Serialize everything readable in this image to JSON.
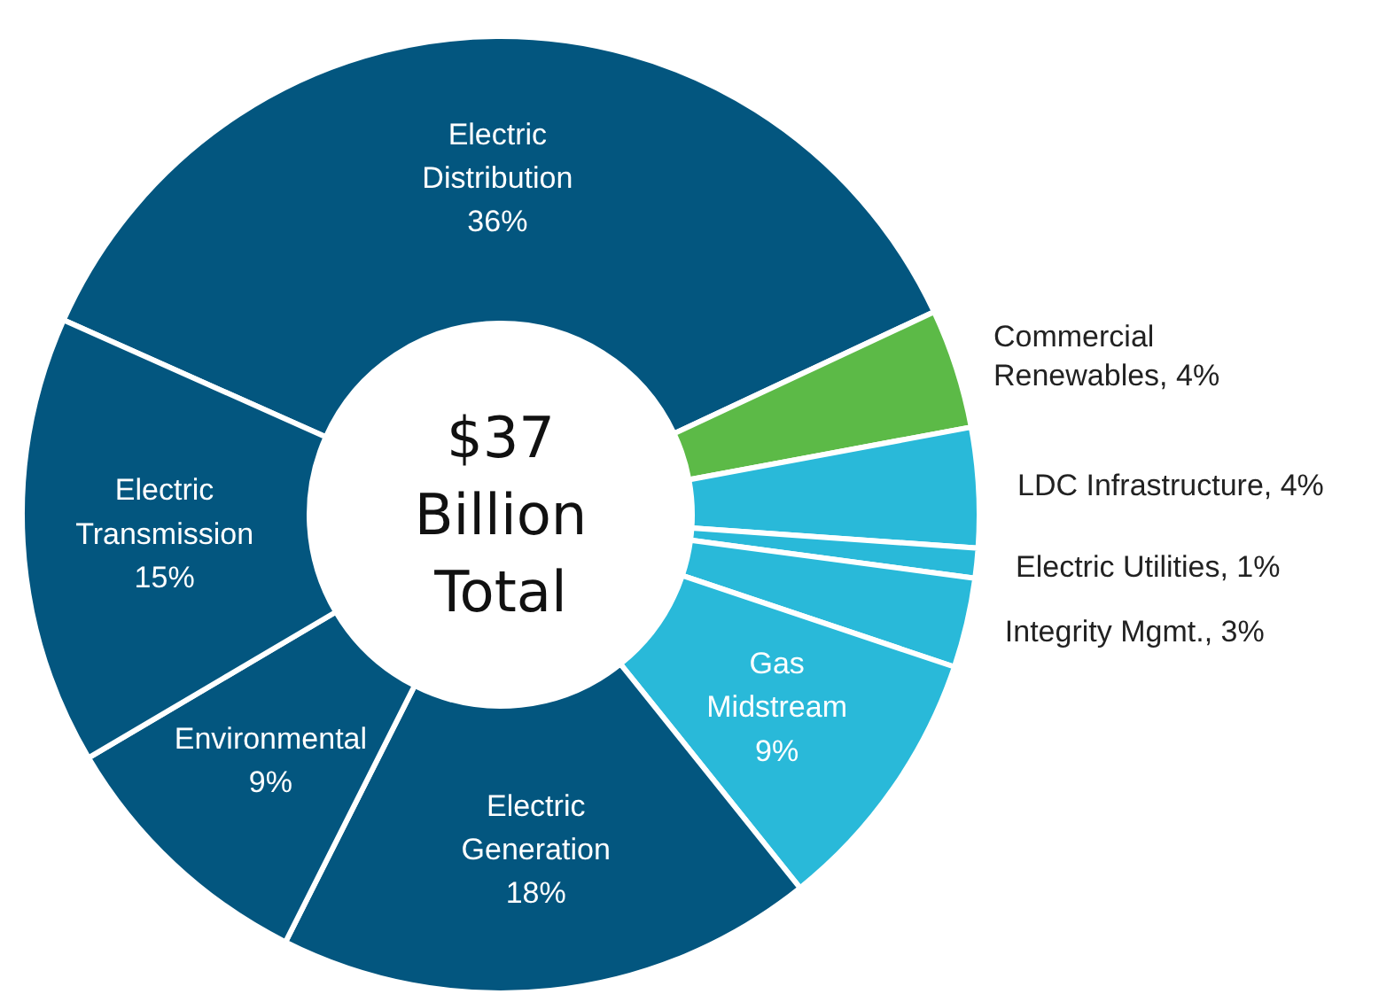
{
  "chart_data": {
    "type": "donut",
    "categories": [
      "Electric Distribution",
      "Commercial Renewables, 4%",
      "LDC Infrastructure, 4%",
      "Electric Utilities, 1%",
      "Integrity Mgmt., 3%",
      "Gas Midstream",
      "Electric Generation",
      "Environmental",
      "Electric Transmission"
    ],
    "values": [
      36,
      4,
      4,
      1,
      3,
      9,
      18,
      9,
      15
    ],
    "colors": [
      "#03567f",
      "#5cba47",
      "#29b9d9",
      "#29b9d9",
      "#29b9d9",
      "#29b9d9",
      "#03567f",
      "#03567f",
      "#03567f"
    ],
    "value_labels": [
      "36%",
      null,
      null,
      null,
      null,
      "9%",
      "18%",
      "9%",
      "15%"
    ],
    "annotations": [
      "$37 Billion Total"
    ]
  }
}
